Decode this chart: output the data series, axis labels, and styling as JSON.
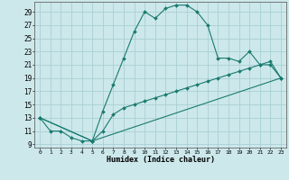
{
  "title": "",
  "xlabel": "Humidex (Indice chaleur)",
  "bg_color": "#cce8eb",
  "grid_color": "#aacfd4",
  "line_color": "#1a7a6e",
  "xlim": [
    -0.5,
    23.5
  ],
  "ylim": [
    8.5,
    30.5
  ],
  "yticks": [
    9,
    11,
    13,
    15,
    17,
    19,
    21,
    23,
    25,
    27,
    29
  ],
  "xticks": [
    0,
    1,
    2,
    3,
    4,
    5,
    6,
    7,
    8,
    9,
    10,
    11,
    12,
    13,
    14,
    15,
    16,
    17,
    18,
    19,
    20,
    21,
    22,
    23
  ],
  "line1_x": [
    0,
    1,
    2,
    3,
    4,
    5,
    6,
    7,
    8,
    9,
    10,
    11,
    12,
    13,
    14,
    15,
    16,
    17,
    18,
    19,
    20,
    21,
    22,
    23
  ],
  "line1_y": [
    13,
    11,
    11,
    10,
    9.5,
    9.5,
    14,
    18,
    22,
    26,
    29,
    28,
    29.5,
    30,
    30,
    29,
    27,
    22,
    22,
    21.5,
    23,
    21,
    21,
    19
  ],
  "line2_x": [
    0,
    5,
    6,
    7,
    8,
    9,
    10,
    11,
    12,
    13,
    14,
    15,
    16,
    17,
    18,
    19,
    20,
    21,
    22,
    23
  ],
  "line2_y": [
    13,
    9.5,
    11,
    13.5,
    14.5,
    15,
    15.5,
    16,
    16.5,
    17,
    17.5,
    18,
    18.5,
    19,
    19.5,
    20,
    20.5,
    21,
    21.5,
    19
  ],
  "line3_x": [
    0,
    5,
    23
  ],
  "line3_y": [
    13,
    9.5,
    19
  ]
}
